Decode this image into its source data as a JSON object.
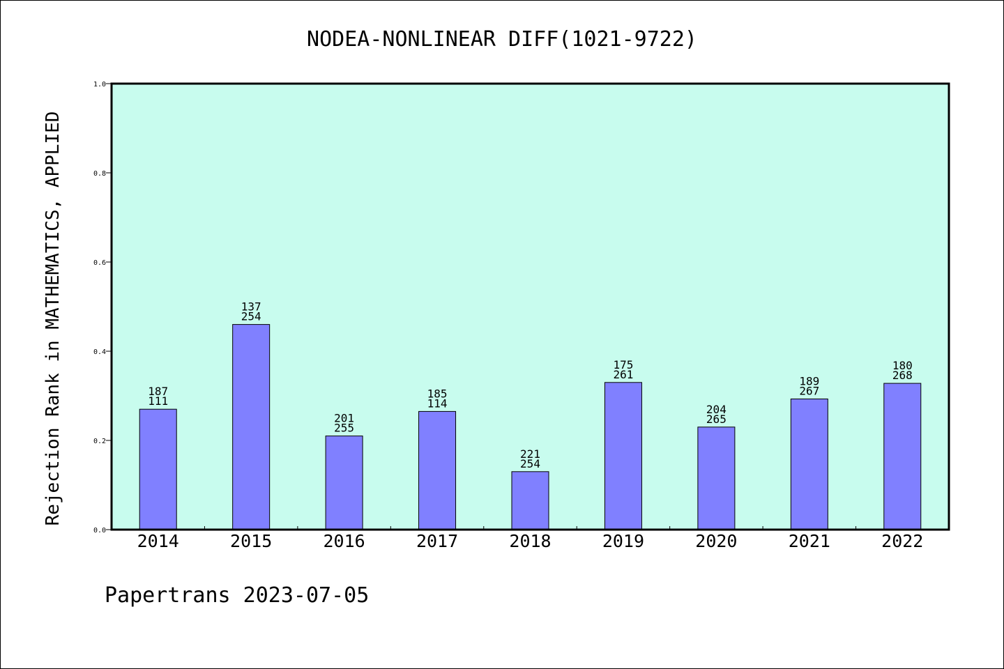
{
  "chart_data": {
    "type": "bar",
    "title": "NODEA-NONLINEAR DIFF(1021-9722)",
    "ylabel": "Rejection Rank in MATHEMATICS, APPLIED",
    "xlabel": "",
    "ylim": [
      0,
      1.0
    ],
    "yticks": [
      "0.0",
      "0.2",
      "0.4",
      "0.6",
      "0.8",
      "1.0"
    ],
    "categories": [
      "2014",
      "2015",
      "2016",
      "2017",
      "2018",
      "2019",
      "2020",
      "2021",
      "2022"
    ],
    "values": [
      0.27,
      0.46,
      0.21,
      0.265,
      0.13,
      0.33,
      0.23,
      0.293,
      0.328
    ],
    "label_top": [
      "187",
      "137",
      "201",
      "185",
      "221",
      "175",
      "204",
      "189",
      "180"
    ],
    "label_bottom": [
      "111",
      "254",
      "255",
      "114",
      "254",
      "261",
      "265",
      "267",
      "268"
    ],
    "plot_bg": "#c8fcee",
    "bar_color": "#8080ff",
    "grid": false,
    "footer": "Papertrans 2023-07-05"
  }
}
